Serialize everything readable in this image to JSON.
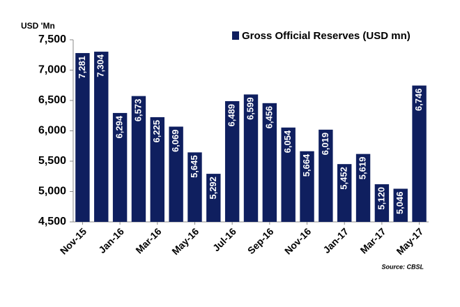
{
  "chart_data": {
    "type": "bar",
    "y_axis_title": "USD 'Mn",
    "categories": [
      "Nov-15",
      null,
      "Jan-16",
      null,
      "Mar-16",
      null,
      "May-16",
      null,
      "Jul-16",
      null,
      "Sep-16",
      null,
      "Nov-16",
      null,
      "Jan-17",
      null,
      "Mar-17",
      null,
      "May-17"
    ],
    "series": [
      {
        "name": "Gross Official Reserves (USD mn)",
        "color": "#0f1f5f",
        "values": [
          7281,
          7304,
          6294,
          6573,
          6225,
          6069,
          5645,
          5292,
          6489,
          6599,
          6456,
          6054,
          5664,
          6019,
          5452,
          5619,
          5120,
          5046,
          6746
        ],
        "value_labels": [
          "7,281",
          "7,304",
          "6,294",
          "6,573",
          "6,225",
          "6,069",
          "5,645",
          "5,292",
          "6,489",
          "6,599",
          "6,456",
          "6,054",
          "5,664",
          "6,019",
          "5,452",
          "5,619",
          "5,120",
          "5,046",
          "6,746"
        ]
      }
    ],
    "ylim": [
      4500,
      7500
    ],
    "yticks": [
      {
        "value": 4500,
        "label": "4,500"
      },
      {
        "value": 5000,
        "label": "5,000"
      },
      {
        "value": 5500,
        "label": "5,500"
      },
      {
        "value": 6000,
        "label": "6,000"
      },
      {
        "value": 6500,
        "label": "6,500"
      },
      {
        "value": 7000,
        "label": "7,000"
      },
      {
        "value": 7500,
        "label": "7,500"
      }
    ],
    "legend": "top-right",
    "source": "Source: CBSL"
  }
}
